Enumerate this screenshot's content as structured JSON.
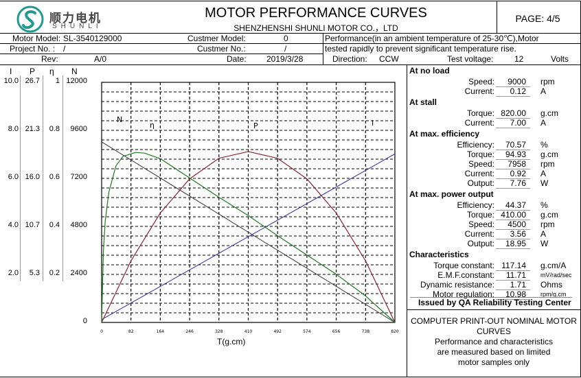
{
  "header": {
    "company_cn": "顺力电机",
    "company_en": "SHUNLI",
    "title": "MOTOR PERFORMANCE CURVES",
    "subtitle": "SHENZHENSHI SHUNLI MOTOR CO.，LTD",
    "page": "PAGE: 4/5"
  },
  "info": {
    "motor_model_label": "Motor Model:",
    "motor_model": "SL-3540129000",
    "customer_model_label": "Custmer Model:",
    "customer_model": "0",
    "project_no_label": "Project No. :",
    "project_no": "/",
    "customer_no_label": "Custmer No.:",
    "customer_no": "/",
    "rev_label": "Rev:",
    "rev": "A/0",
    "date_label": "Date:",
    "date": "2019/3/28",
    "direction_label": "Direction:",
    "direction": "CCW",
    "note_line1": "Performance(in an ambient temperature of 25-30℃),Motor",
    "note_line2": "tested rapidly to prevent significant temperature rise.",
    "test_voltage_label": "Test voltage:",
    "test_voltage": "12",
    "test_voltage_unit": "Volts"
  },
  "axis_headers": {
    "i": "I",
    "p": "P",
    "eta": "η",
    "n": "N"
  },
  "left_axis": [
    {
      "i": "10.0",
      "p": "26.7",
      "eta": "1",
      "n": "12000"
    },
    {
      "i": "8.0",
      "p": "21.3",
      "eta": "0.8",
      "n": "9600"
    },
    {
      "i": "6.0",
      "p": "16.0",
      "eta": "0.6",
      "n": "7200"
    },
    {
      "i": "4.0",
      "p": "10.7",
      "eta": "0.4",
      "n": "4800"
    },
    {
      "i": "2.0",
      "p": "5.3",
      "eta": "0.2",
      "n": "2400"
    },
    {
      "i": "",
      "p": "",
      "eta": "",
      "n": "0"
    }
  ],
  "chart_data": {
    "type": "line",
    "title": "MOTOR PERFORMANCE CURVES",
    "xlabel": "T(g.cm)",
    "x_ticks": [
      "0",
      "82",
      "164",
      "246",
      "328",
      "410",
      "492",
      "574",
      "656",
      "738",
      "820"
    ],
    "xlim": [
      0,
      820
    ],
    "grid": true,
    "legend": [
      "N",
      "η",
      "P",
      "I"
    ],
    "colors": {
      "speed": "#333333",
      "efficiency": "#1a7a1a",
      "power": "#8b2232",
      "current": "#2a2aa0"
    },
    "series": [
      {
        "name": "N",
        "unit": "rpm",
        "x": [
          0,
          820
        ],
        "y": [
          9000,
          0
        ]
      },
      {
        "name": "I",
        "unit": "A",
        "x": [
          0,
          820
        ],
        "y": [
          0.12,
          7.0
        ]
      },
      {
        "name": "P",
        "unit": "W",
        "x": [
          0,
          82,
          164,
          246,
          328,
          410,
          492,
          574,
          656,
          738,
          820
        ],
        "y": [
          0,
          6.83,
          12.13,
          15.92,
          18.2,
          18.95,
          18.2,
          15.92,
          12.13,
          6.83,
          0
        ]
      },
      {
        "name": "η",
        "unit": "",
        "x": [
          0,
          5,
          10,
          20,
          40,
          60,
          95,
          120,
          164,
          246,
          328,
          410,
          492,
          574,
          656,
          738,
          820
        ],
        "y": [
          0,
          0.3,
          0.42,
          0.54,
          0.65,
          0.69,
          0.706,
          0.703,
          0.68,
          0.6,
          0.52,
          0.444,
          0.36,
          0.28,
          0.2,
          0.11,
          0
        ]
      }
    ]
  },
  "panel": {
    "no_load_title": "At no load",
    "no_load": [
      {
        "label": "Speed:",
        "value": "9000",
        "unit": "rpm"
      },
      {
        "label": "Current:",
        "value": "0.12",
        "unit": "A"
      }
    ],
    "stall_title": "At stall",
    "stall": [
      {
        "label": "Torque:",
        "value": "820.00",
        "unit": "g.cm"
      },
      {
        "label": "Current:",
        "value": "7.00",
        "unit": "A"
      }
    ],
    "max_eff_title": "At max. efficiency",
    "max_eff": [
      {
        "label": "Efficiency:",
        "value": "70.57",
        "unit": "%"
      },
      {
        "label": "Torque:",
        "value": "94.93",
        "unit": "g.cm"
      },
      {
        "label": "Speed:",
        "value": "7958",
        "unit": "rpm"
      },
      {
        "label": "Current:",
        "value": "0.92",
        "unit": "A"
      },
      {
        "label": "Output:",
        "value": "7.76",
        "unit": "W"
      }
    ],
    "max_power_title": "At max. power output",
    "max_power": [
      {
        "label": "Efficiency:",
        "value": "44.37",
        "unit": "%"
      },
      {
        "label": "Torque:",
        "value": "410.00",
        "unit": "g.cm"
      },
      {
        "label": "Speed:",
        "value": "4500",
        "unit": "rpm"
      },
      {
        "label": "Current:",
        "value": "3.56",
        "unit": "A"
      },
      {
        "label": "Output:",
        "value": "18.95",
        "unit": "W"
      }
    ],
    "char_title": "Characteristics",
    "characteristics": [
      {
        "label": "Torque constant:",
        "value": "117.14",
        "unit": "g.cm/A"
      },
      {
        "label": "E.M.F.constant:",
        "value": "11.71",
        "unit": "mV/rad/sec"
      },
      {
        "label": "Dynamic resistance:",
        "value": "1.71",
        "unit": "Ohms"
      },
      {
        "label": "Motor regulation:",
        "value": "10.98",
        "unit": "rpm/g.cm"
      }
    ]
  },
  "footer": {
    "issued_by": "Issued by QA Reliability Testing Center",
    "note": [
      "COMPUTER PRINT-OUT NOMINAL MOTOR",
      "CURVES",
      "Performance and characteristics",
      "are measured based on limited",
      "motor samples only"
    ]
  }
}
